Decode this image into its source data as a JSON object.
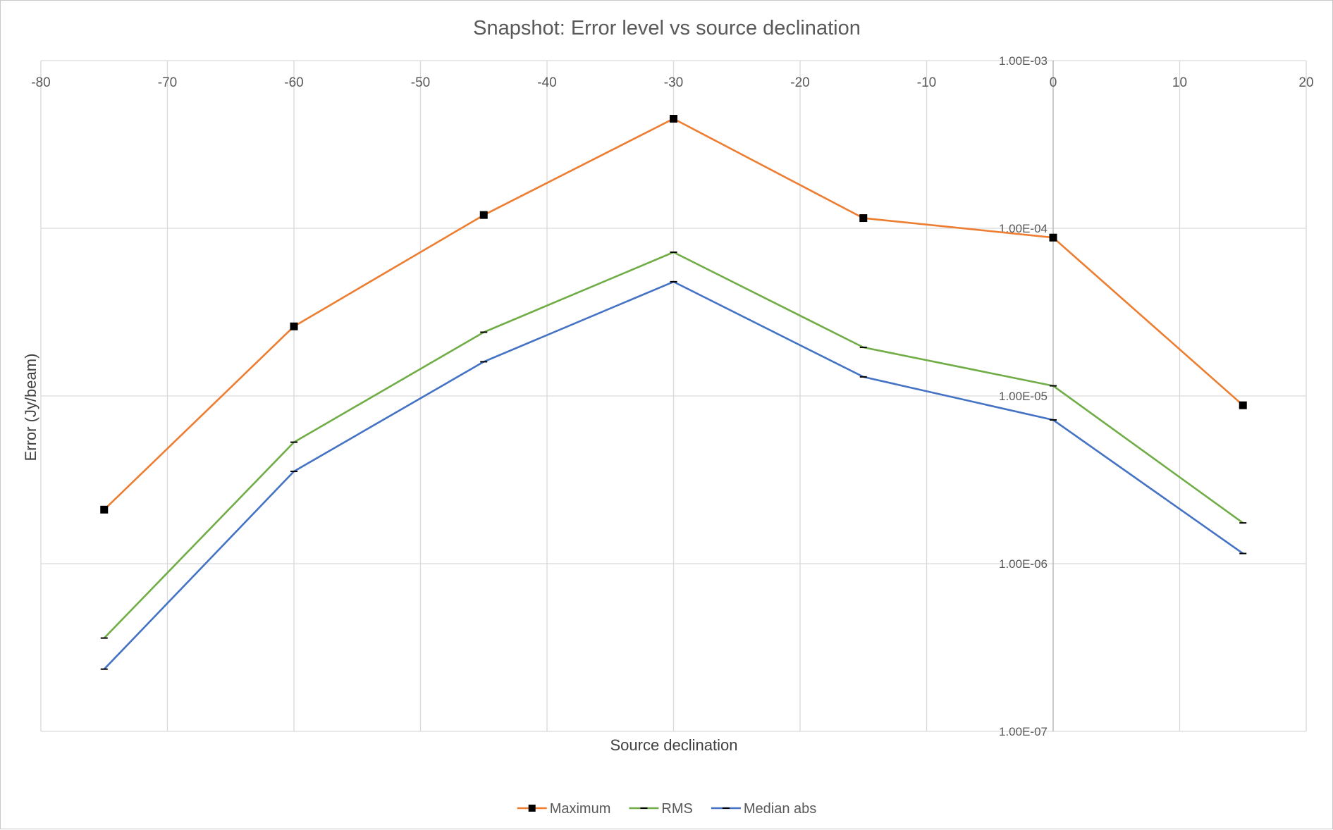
{
  "chart_data": {
    "type": "line",
    "title": "Snapshot: Error level vs source declination",
    "xlabel": "Source declination",
    "ylabel": "Error (Jy/beam)",
    "xlim": [
      -80,
      20
    ],
    "x_ticks": [
      -80,
      -70,
      -60,
      -50,
      -40,
      -30,
      -20,
      -10,
      0,
      10,
      20
    ],
    "x_tick_labels": [
      "-80",
      "-70",
      "-60",
      "-50",
      "-40",
      "-30",
      "-20",
      "-10",
      "0",
      "10",
      "20"
    ],
    "y_scale": "log",
    "ylim": [
      1e-07,
      0.001
    ],
    "y_ticks": [
      0.001,
      0.0001,
      1e-05,
      1e-06,
      1e-07
    ],
    "y_tick_labels": [
      "1.00E-03",
      "1.00E-04",
      "1.00E-05",
      "1.00E-06",
      "1.00E-07"
    ],
    "grid": true,
    "legend_position": "bottom",
    "x": [
      -75,
      -60,
      -45,
      -30,
      -15,
      0,
      15
    ],
    "series": [
      {
        "name": "Maximum",
        "color": "#ED7D31",
        "marker": "square",
        "values": [
          2.1e-06,
          2.6e-05,
          0.00012,
          0.00045,
          0.000115,
          8.8e-05,
          8.8e-06
        ]
      },
      {
        "name": "RMS",
        "color": "#70AD47",
        "marker": "dash",
        "values": [
          3.6e-07,
          5.3e-06,
          2.4e-05,
          7.2e-05,
          1.95e-05,
          1.15e-05,
          1.75e-06
        ]
      },
      {
        "name": "Median abs",
        "color": "#4472C4",
        "marker": "dash",
        "values": [
          2.35e-07,
          3.55e-06,
          1.6e-05,
          4.8e-05,
          1.3e-05,
          7.2e-06,
          1.15e-06
        ]
      }
    ]
  }
}
